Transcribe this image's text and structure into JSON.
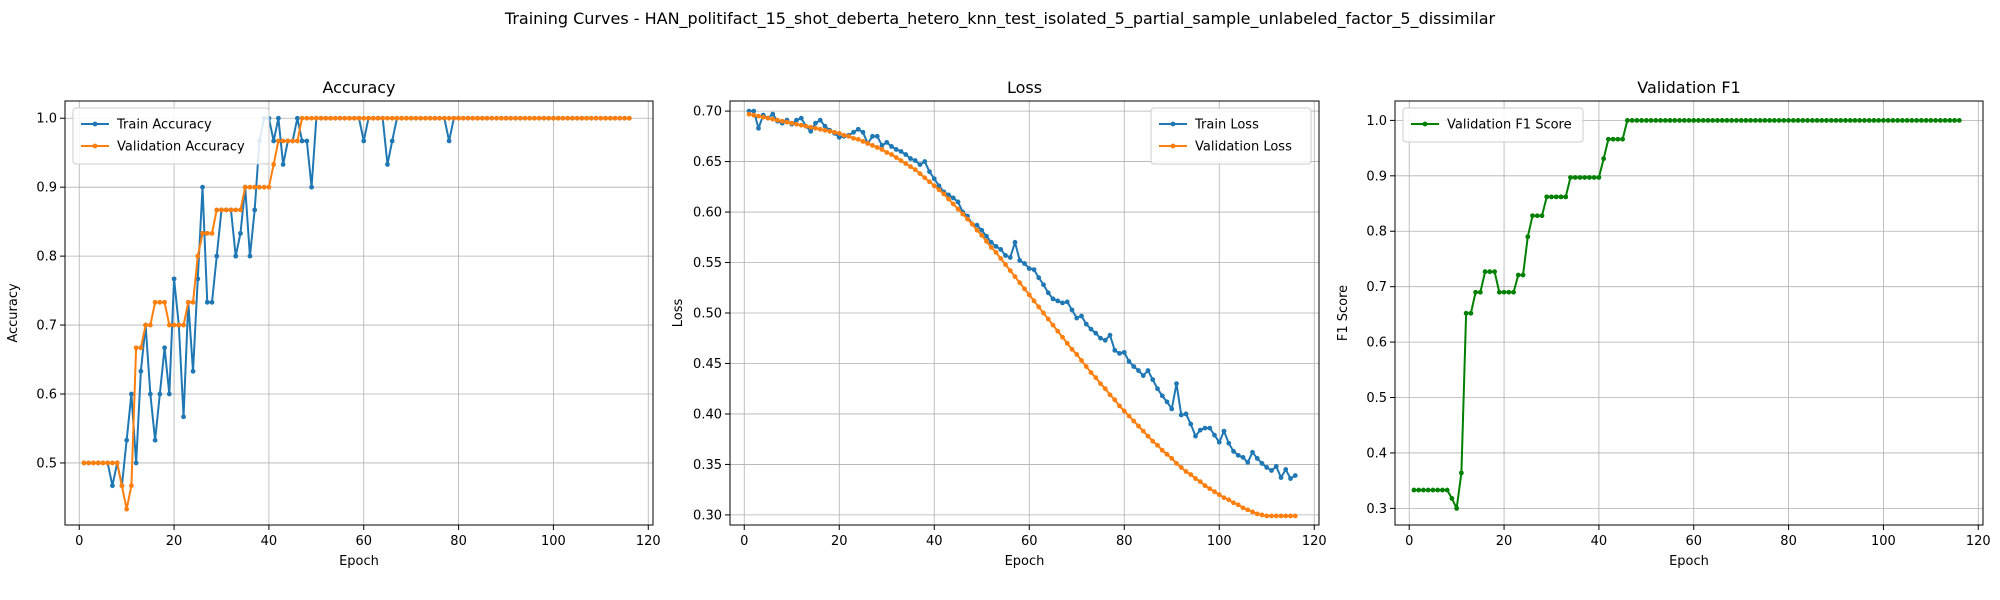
{
  "figure": {
    "suptitle": "Training Curves - HAN_politifact_15_shot_deberta_hetero_knn_test_isolated_5_partial_sample_unlabeled_factor_5_dissimilar"
  },
  "colors": {
    "blue": "#1f77b4",
    "orange": "#ff7f0e",
    "green": "#008000",
    "grid": "#b0b0b0"
  },
  "chart_data": [
    {
      "type": "line",
      "title": "Accuracy",
      "xlabel": "Epoch",
      "ylabel": "Accuracy",
      "xlim": [
        -3,
        121
      ],
      "ylim": [
        0.41,
        1.025
      ],
      "xticks": [
        0,
        20,
        40,
        60,
        80,
        100,
        120
      ],
      "yticks": [
        0.5,
        0.6,
        0.7,
        0.8,
        0.9,
        1.0
      ],
      "ytick_labels": [
        "0.5",
        "0.6",
        "0.7",
        "0.8",
        "0.9",
        "1.0"
      ],
      "grid": true,
      "legend": "upper left",
      "series": [
        {
          "name": "Train Accuracy",
          "color": "#1f77b4",
          "x_start": 1,
          "values": [
            0.5,
            0.5,
            0.5,
            0.5,
            0.5,
            0.5,
            0.467,
            0.5,
            0.467,
            0.533,
            0.6,
            0.5,
            0.633,
            0.7,
            0.6,
            0.533,
            0.6,
            0.667,
            0.6,
            0.767,
            0.7,
            0.567,
            0.733,
            0.633,
            0.767,
            0.9,
            0.733,
            0.733,
            0.8,
            0.867,
            0.867,
            0.867,
            0.8,
            0.833,
            0.9,
            0.8,
            0.867,
            0.967,
            1.0,
            1.0,
            0.967,
            1.0,
            0.933,
            0.967,
            0.967,
            1.0,
            0.967,
            0.967,
            0.9,
            1.0,
            1.0,
            1.0,
            1.0,
            1.0,
            1.0,
            1.0,
            1.0,
            1.0,
            1.0,
            0.967,
            1.0,
            1.0,
            1.0,
            1.0,
            0.933,
            0.967,
            1.0,
            1.0,
            1.0,
            1.0,
            1.0,
            1.0,
            1.0,
            1.0,
            1.0,
            1.0,
            1.0,
            0.967,
            1.0,
            1.0,
            1.0,
            1.0,
            1.0,
            1.0,
            1.0,
            1.0,
            1.0,
            1.0,
            1.0,
            1.0,
            1.0,
            1.0,
            1.0,
            1.0,
            1.0,
            1.0,
            1.0,
            1.0,
            1.0,
            1.0,
            1.0,
            1.0,
            1.0,
            1.0,
            1.0,
            1.0,
            1.0,
            1.0,
            1.0,
            1.0,
            1.0,
            1.0,
            1.0,
            1.0,
            1.0,
            1.0
          ]
        },
        {
          "name": "Validation Accuracy",
          "color": "#ff7f0e",
          "x_start": 1,
          "values": [
            0.5,
            0.5,
            0.5,
            0.5,
            0.5,
            0.5,
            0.5,
            0.5,
            0.467,
            0.433,
            0.467,
            0.667,
            0.667,
            0.7,
            0.7,
            0.733,
            0.733,
            0.733,
            0.7,
            0.7,
            0.7,
            0.7,
            0.733,
            0.733,
            0.8,
            0.833,
            0.833,
            0.833,
            0.867,
            0.867,
            0.867,
            0.867,
            0.867,
            0.867,
            0.9,
            0.9,
            0.9,
            0.9,
            0.9,
            0.9,
            0.933,
            0.967,
            0.967,
            0.967,
            0.967,
            0.967,
            1.0,
            1.0,
            1.0,
            1.0,
            1.0,
            1.0,
            1.0,
            1.0,
            1.0,
            1.0,
            1.0,
            1.0,
            1.0,
            1.0,
            1.0,
            1.0,
            1.0,
            1.0,
            1.0,
            1.0,
            1.0,
            1.0,
            1.0,
            1.0,
            1.0,
            1.0,
            1.0,
            1.0,
            1.0,
            1.0,
            1.0,
            1.0,
            1.0,
            1.0,
            1.0,
            1.0,
            1.0,
            1.0,
            1.0,
            1.0,
            1.0,
            1.0,
            1.0,
            1.0,
            1.0,
            1.0,
            1.0,
            1.0,
            1.0,
            1.0,
            1.0,
            1.0,
            1.0,
            1.0,
            1.0,
            1.0,
            1.0,
            1.0,
            1.0,
            1.0,
            1.0,
            1.0,
            1.0,
            1.0,
            1.0,
            1.0,
            1.0,
            1.0,
            1.0,
            1.0
          ]
        }
      ]
    },
    {
      "type": "line",
      "title": "Loss",
      "xlabel": "Epoch",
      "ylabel": "Loss",
      "xlim": [
        -3,
        121
      ],
      "ylim": [
        0.29,
        0.71
      ],
      "xticks": [
        0,
        20,
        40,
        60,
        80,
        100,
        120
      ],
      "yticks": [
        0.3,
        0.35,
        0.4,
        0.45,
        0.5,
        0.55,
        0.6,
        0.65,
        0.7
      ],
      "ytick_labels": [
        "0.30",
        "0.35",
        "0.40",
        "0.45",
        "0.50",
        "0.55",
        "0.60",
        "0.65",
        "0.70"
      ],
      "grid": true,
      "legend": "upper right",
      "series": [
        {
          "name": "Train Loss",
          "color": "#1f77b4",
          "x_start": 1,
          "values": [
            0.7,
            0.7,
            0.683,
            0.696,
            0.693,
            0.697,
            0.69,
            0.688,
            0.691,
            0.687,
            0.691,
            0.693,
            0.685,
            0.68,
            0.688,
            0.691,
            0.685,
            0.681,
            0.678,
            0.674,
            0.675,
            0.676,
            0.679,
            0.682,
            0.679,
            0.668,
            0.675,
            0.675,
            0.666,
            0.669,
            0.665,
            0.662,
            0.66,
            0.657,
            0.653,
            0.651,
            0.647,
            0.65,
            0.64,
            0.633,
            0.626,
            0.62,
            0.617,
            0.614,
            0.61,
            0.6,
            0.596,
            0.588,
            0.587,
            0.582,
            0.576,
            0.57,
            0.566,
            0.563,
            0.557,
            0.555,
            0.57,
            0.552,
            0.549,
            0.544,
            0.543,
            0.535,
            0.528,
            0.52,
            0.514,
            0.512,
            0.51,
            0.511,
            0.503,
            0.495,
            0.497,
            0.489,
            0.484,
            0.48,
            0.475,
            0.473,
            0.478,
            0.463,
            0.46,
            0.461,
            0.452,
            0.447,
            0.443,
            0.438,
            0.443,
            0.434,
            0.425,
            0.418,
            0.412,
            0.405,
            0.43,
            0.399,
            0.4,
            0.39,
            0.378,
            0.384,
            0.386,
            0.386,
            0.379,
            0.372,
            0.383,
            0.371,
            0.363,
            0.359,
            0.357,
            0.352,
            0.362,
            0.356,
            0.351,
            0.347,
            0.344,
            0.348,
            0.337,
            0.345,
            0.336,
            0.339
          ]
        },
        {
          "name": "Validation Loss",
          "color": "#ff7f0e",
          "x_start": 1,
          "values": [
            0.697,
            0.696,
            0.695,
            0.694,
            0.693,
            0.692,
            0.691,
            0.69,
            0.689,
            0.688,
            0.687,
            0.686,
            0.685,
            0.684,
            0.683,
            0.682,
            0.681,
            0.68,
            0.679,
            0.678,
            0.676,
            0.675,
            0.673,
            0.672,
            0.67,
            0.668,
            0.666,
            0.664,
            0.662,
            0.659,
            0.657,
            0.654,
            0.651,
            0.648,
            0.645,
            0.642,
            0.638,
            0.634,
            0.63,
            0.626,
            0.622,
            0.618,
            0.613,
            0.608,
            0.603,
            0.598,
            0.593,
            0.588,
            0.582,
            0.577,
            0.571,
            0.565,
            0.56,
            0.554,
            0.548,
            0.542,
            0.536,
            0.53,
            0.524,
            0.518,
            0.512,
            0.506,
            0.5,
            0.494,
            0.488,
            0.482,
            0.476,
            0.47,
            0.464,
            0.459,
            0.453,
            0.447,
            0.441,
            0.436,
            0.43,
            0.425,
            0.419,
            0.414,
            0.408,
            0.403,
            0.398,
            0.393,
            0.388,
            0.383,
            0.378,
            0.373,
            0.369,
            0.364,
            0.36,
            0.356,
            0.351,
            0.347,
            0.343,
            0.34,
            0.336,
            0.333,
            0.329,
            0.326,
            0.323,
            0.32,
            0.317,
            0.315,
            0.312,
            0.31,
            0.307,
            0.305,
            0.303,
            0.301,
            0.3,
            0.299,
            0.299,
            0.299,
            0.299,
            0.299,
            0.299,
            0.299
          ]
        }
      ]
    },
    {
      "type": "line",
      "title": "Validation F1",
      "xlabel": "Epoch",
      "ylabel": "F1 Score",
      "xlim": [
        -3,
        121
      ],
      "ylim": [
        0.27,
        1.035
      ],
      "xticks": [
        0,
        20,
        40,
        60,
        80,
        100,
        120
      ],
      "yticks": [
        0.3,
        0.4,
        0.5,
        0.6,
        0.7,
        0.8,
        0.9,
        1.0
      ],
      "ytick_labels": [
        "0.3",
        "0.4",
        "0.5",
        "0.6",
        "0.7",
        "0.8",
        "0.9",
        "1.0"
      ],
      "grid": true,
      "legend": "upper left",
      "series": [
        {
          "name": "Validation F1 Score",
          "color": "#008000",
          "x_start": 1,
          "values": [
            0.333,
            0.333,
            0.333,
            0.333,
            0.333,
            0.333,
            0.333,
            0.333,
            0.318,
            0.3,
            0.364,
            0.652,
            0.652,
            0.69,
            0.69,
            0.727,
            0.727,
            0.727,
            0.69,
            0.69,
            0.69,
            0.69,
            0.721,
            0.721,
            0.79,
            0.828,
            0.828,
            0.828,
            0.862,
            0.862,
            0.862,
            0.862,
            0.862,
            0.897,
            0.897,
            0.897,
            0.897,
            0.897,
            0.897,
            0.897,
            0.931,
            0.966,
            0.966,
            0.966,
            0.966,
            1.0,
            1.0,
            1.0,
            1.0,
            1.0,
            1.0,
            1.0,
            1.0,
            1.0,
            1.0,
            1.0,
            1.0,
            1.0,
            1.0,
            1.0,
            1.0,
            1.0,
            1.0,
            1.0,
            1.0,
            1.0,
            1.0,
            1.0,
            1.0,
            1.0,
            1.0,
            1.0,
            1.0,
            1.0,
            1.0,
            1.0,
            1.0,
            1.0,
            1.0,
            1.0,
            1.0,
            1.0,
            1.0,
            1.0,
            1.0,
            1.0,
            1.0,
            1.0,
            1.0,
            1.0,
            1.0,
            1.0,
            1.0,
            1.0,
            1.0,
            1.0,
            1.0,
            1.0,
            1.0,
            1.0,
            1.0,
            1.0,
            1.0,
            1.0,
            1.0,
            1.0,
            1.0,
            1.0,
            1.0,
            1.0,
            1.0,
            1.0,
            1.0,
            1.0,
            1.0,
            1.0
          ]
        }
      ]
    }
  ]
}
